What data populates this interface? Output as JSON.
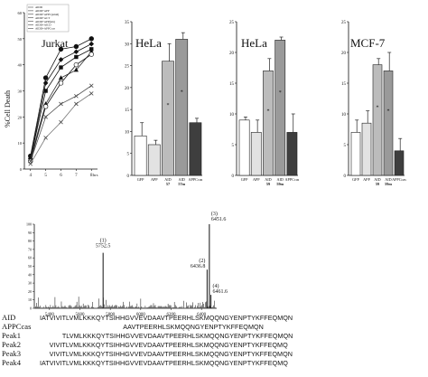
{
  "chart_data": [
    {
      "type": "line",
      "title": "Jurkat",
      "ylabel": "%Cell Death",
      "xlabel": "hrs",
      "ylim": [
        0,
        60
      ],
      "yticks": [
        "0",
        "10",
        "20",
        "30",
        "40",
        "50",
        "60"
      ],
      "xticks": [
        "4",
        "5",
        "6",
        "7",
        "8"
      ],
      "x": [
        4,
        5,
        6,
        7,
        8
      ],
      "legend": [
        "AIDD",
        "AIDD+APP",
        "AIDD+APPC(amid)",
        "AIDD+ACT",
        "AIDD+APP(nm)",
        "AIDD+AICD",
        "AIDD+APPCcas"
      ],
      "series": [
        {
          "name": "AIDD",
          "values": [
            5,
            35,
            46,
            47,
            50
          ]
        },
        {
          "name": "AIDD+APP",
          "values": [
            4,
            30,
            39,
            43,
            46
          ]
        },
        {
          "name": "AIDD+APPC(amid)",
          "values": [
            4,
            33,
            42,
            45,
            48
          ]
        },
        {
          "name": "AIDD+ACT",
          "values": [
            4,
            25,
            35,
            38,
            45
          ]
        },
        {
          "name": "AIDD+APP(nm)",
          "values": [
            3,
            24,
            33,
            40,
            44
          ]
        },
        {
          "name": "AIDD+AICD",
          "values": [
            3,
            20,
            25,
            28,
            32
          ]
        },
        {
          "name": "AIDD+APPCcas",
          "values": [
            2,
            12,
            18,
            25,
            29
          ]
        }
      ]
    },
    {
      "type": "bar",
      "title": "HeLa",
      "ylim": [
        0,
        35
      ],
      "yticks": [
        "0",
        "5",
        "10",
        "15",
        "20",
        "25",
        "30",
        "35"
      ],
      "categories": [
        "GFP",
        "APP",
        "AID",
        "AID",
        "APPCcas"
      ],
      "subcategories": [
        "",
        "",
        "57",
        "57m",
        ""
      ],
      "values": [
        9,
        7,
        26,
        31,
        12
      ],
      "errors": [
        3,
        1,
        4,
        1.5,
        1
      ],
      "colors": [
        "#ffffff",
        "#e2e2e2",
        "#bcbcbc",
        "#9a9a9a",
        "#3e3e3e"
      ],
      "stars": [
        "",
        "",
        "*",
        "*",
        ""
      ]
    },
    {
      "type": "bar",
      "title": "HeLa",
      "ylim": [
        0,
        25
      ],
      "yticks": [
        "0",
        "5",
        "10",
        "15",
        "20",
        "25"
      ],
      "categories": [
        "GFP",
        "APP",
        "AID",
        "AID",
        "APPCcas"
      ],
      "subcategories": [
        "",
        "",
        "59",
        "59m",
        ""
      ],
      "values": [
        9,
        7,
        17,
        22,
        7
      ],
      "errors": [
        0.5,
        2,
        2,
        0.5,
        3
      ],
      "colors": [
        "#ffffff",
        "#e2e2e2",
        "#bcbcbc",
        "#9a9a9a",
        "#3e3e3e"
      ],
      "stars": [
        "",
        "",
        "*",
        "*",
        ""
      ]
    },
    {
      "type": "bar",
      "title": "MCF-7",
      "ylim": [
        0,
        25
      ],
      "yticks": [
        "0",
        "5",
        "10",
        "15",
        "20",
        "25"
      ],
      "categories": [
        "GFP",
        "APP",
        "AID",
        "AID",
        "APPCcas"
      ],
      "subcategories": [
        "",
        "",
        "59",
        "59m",
        ""
      ],
      "values": [
        7,
        8.5,
        18,
        17,
        4
      ],
      "errors": [
        2,
        2,
        1,
        3,
        2
      ],
      "colors": [
        "#ffffff",
        "#e2e2e2",
        "#bcbcbc",
        "#9a9a9a",
        "#3e3e3e"
      ],
      "stars": [
        "",
        "",
        "*",
        "*",
        ""
      ]
    },
    {
      "type": "line",
      "title": "",
      "ylim": [
        0,
        100
      ],
      "yticks": [
        "0",
        "10",
        "20",
        "30",
        "40",
        "50",
        "60",
        "70",
        "80",
        "90",
        "100"
      ],
      "xlim": [
        5300,
        6500
      ],
      "xticks": [
        "5400",
        "5600",
        "5800",
        "6000",
        "6200",
        "6400"
      ],
      "peaks": [
        {
          "x": 5752.5,
          "y": 66,
          "label": "(1)",
          "value": "5752.5"
        },
        {
          "x": 6436.8,
          "y": 46,
          "label": "(2)",
          "value": "6436.8"
        },
        {
          "x": 6451.6,
          "y": 100,
          "label": "(3)",
          "value": "6451.6"
        },
        {
          "x": 6461.6,
          "y": 16,
          "label": "(4)",
          "value": "6461.6"
        }
      ]
    }
  ],
  "sequences": [
    {
      "label": "AID",
      "text": "IATVIVITLVMLKKKQYTSIHHGVVEVDAAVTPEERHLSKMQQNGYENPTYKFFEQMQN"
    },
    {
      "label": "APPCcas",
      "text": "AAVTPEERHLSKMQQNGYENPTYKFFEQMQN"
    },
    {
      "label": "Peak1",
      "text": "TLVMLKKKQYTSIHHGVVEVDAAVTPEERHLSKMQQNGYENPTYKFFEQMQN"
    },
    {
      "label": "Peak2",
      "text": "VIVITLVMLKKKQYTSIHHGVVEVDAAVTPEERHLSKMQQNGYENPTYKFFEQMQ"
    },
    {
      "label": "Peak3",
      "text": "VIVITLVMLKKKQYTSIHHGVVEVDAAVTPEERHLSKMQQNGYENPTYKFFEQMQN"
    },
    {
      "label": "Peak4",
      "text": "IATVIVITLVMLKKKQYTSIHHGVVEVDAAVTPEERHLSKMQQNGYENPTYKFFEQMQ"
    }
  ]
}
